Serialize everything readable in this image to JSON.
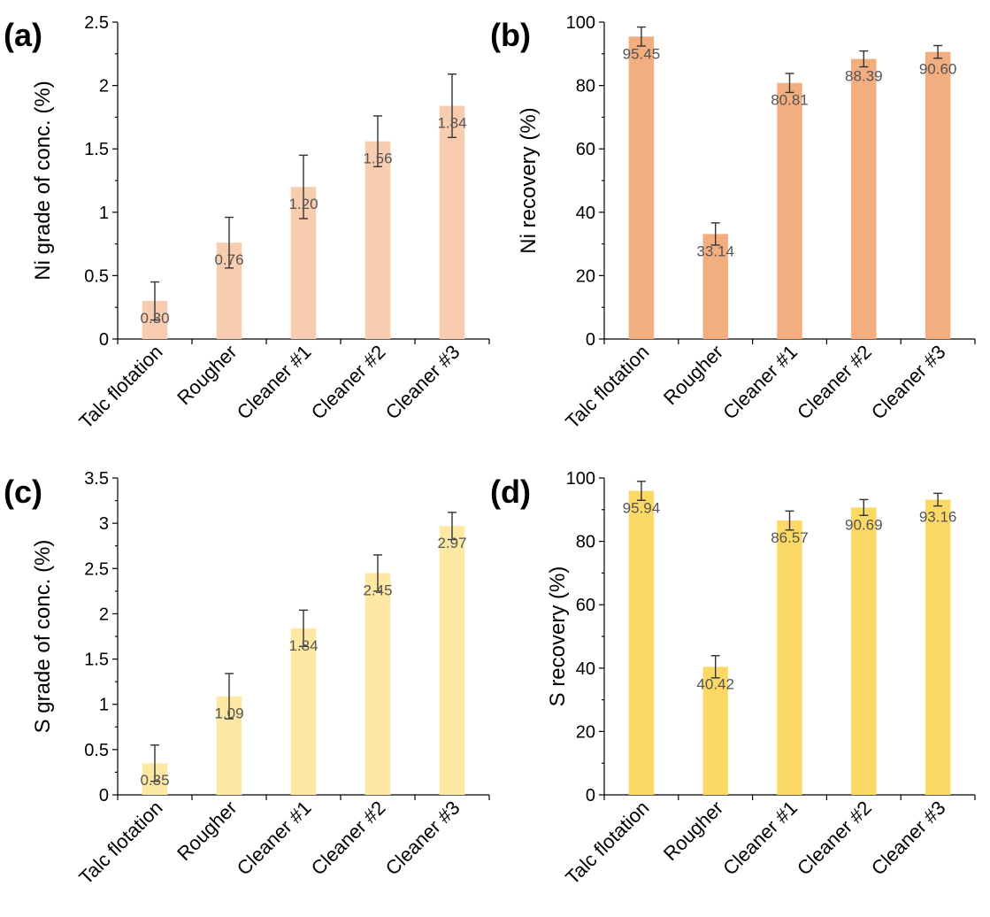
{
  "chart_data": [
    {
      "panel_label": "(a)",
      "type": "bar",
      "ylabel": "Ni grade of conc. (%)",
      "categories": [
        "Talc flotation",
        "Rougher",
        "Cleaner #1",
        "Cleaner #2",
        "Cleaner #3"
      ],
      "values": [
        0.3,
        0.76,
        1.2,
        1.56,
        1.84
      ],
      "value_labels": [
        "0.30",
        "0.76",
        "1.20",
        "1.56",
        "1.84"
      ],
      "errors": [
        0.15,
        0.2,
        0.25,
        0.2,
        0.25
      ],
      "ylim": [
        0,
        2.5
      ],
      "yticks": [
        0,
        0.5,
        1,
        1.5,
        2,
        2.5
      ],
      "ytick_labels": [
        "0",
        "0.5",
        "1",
        "1.5",
        "2",
        "2.5"
      ],
      "color": "#F8CDAF"
    },
    {
      "panel_label": "(b)",
      "type": "bar",
      "ylabel": "Ni recovery (%)",
      "categories": [
        "Talc flotation",
        "Rougher",
        "Cleaner #1",
        "Cleaner #2",
        "Cleaner #3"
      ],
      "values": [
        95.45,
        33.14,
        80.81,
        88.39,
        90.6
      ],
      "value_labels": [
        "95.45",
        "33.14",
        "80.81",
        "88.39",
        "90.60"
      ],
      "errors": [
        3.0,
        3.5,
        3.0,
        2.5,
        2.0
      ],
      "ylim": [
        0,
        100
      ],
      "yticks": [
        0,
        20,
        40,
        60,
        80,
        100
      ],
      "ytick_labels": [
        "0",
        "20",
        "40",
        "60",
        "80",
        "100"
      ],
      "color": "#F2AE7F"
    },
    {
      "panel_label": "(c)",
      "type": "bar",
      "ylabel": "S grade of conc. (%)",
      "categories": [
        "Talc flotation",
        "Rougher",
        "Cleaner #1",
        "Cleaner #2",
        "Cleaner #3"
      ],
      "values": [
        0.35,
        1.09,
        1.84,
        2.45,
        2.97
      ],
      "value_labels": [
        "0.35",
        "1.09",
        "1.84",
        "2.45",
        "2.97"
      ],
      "errors": [
        0.2,
        0.25,
        0.2,
        0.2,
        0.15
      ],
      "ylim": [
        0,
        3.5
      ],
      "yticks": [
        0,
        0.5,
        1,
        1.5,
        2,
        2.5,
        3,
        3.5
      ],
      "ytick_labels": [
        "0",
        "0.5",
        "1",
        "1.5",
        "2",
        "2.5",
        "3",
        "3.5"
      ],
      "color": "#FDE9A4"
    },
    {
      "panel_label": "(d)",
      "type": "bar",
      "ylabel": "S recovery (%)",
      "categories": [
        "Talc flotation",
        "Rougher",
        "Cleaner #1",
        "Cleaner #2",
        "Cleaner #3"
      ],
      "values": [
        95.94,
        40.42,
        86.57,
        90.69,
        93.16
      ],
      "value_labels": [
        "95.94",
        "40.42",
        "86.57",
        "90.69",
        "93.16"
      ],
      "errors": [
        3.0,
        3.5,
        3.0,
        2.5,
        2.0
      ],
      "ylim": [
        0,
        100
      ],
      "yticks": [
        0,
        20,
        40,
        60,
        80,
        100
      ],
      "ytick_labels": [
        "0",
        "20",
        "40",
        "60",
        "80",
        "100"
      ],
      "color": "#FCD865"
    }
  ]
}
